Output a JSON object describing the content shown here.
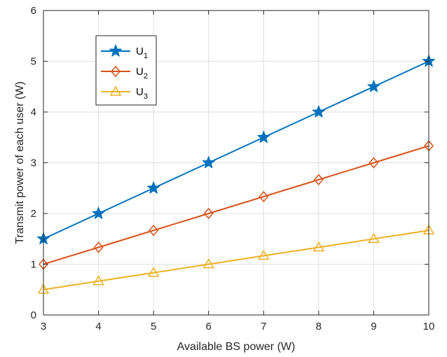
{
  "chart_data": {
    "type": "line",
    "xlabel": "Available BS power (W)",
    "ylabel": "Transmit power of each user (W)",
    "x": [
      3,
      4,
      5,
      6,
      7,
      8,
      9,
      10
    ],
    "xlim": [
      3,
      10
    ],
    "ylim": [
      0,
      6
    ],
    "xticks": [
      "3",
      "4",
      "5",
      "6",
      "7",
      "8",
      "9",
      "10"
    ],
    "yticks": [
      "0",
      "1",
      "2",
      "3",
      "4",
      "5",
      "6"
    ],
    "grid": true,
    "legend_position": "top-left",
    "series": [
      {
        "name": "U",
        "sub": "1",
        "marker": "star",
        "color": "#0072BD",
        "values": [
          1.5,
          2.0,
          2.5,
          3.0,
          3.5,
          4.0,
          4.5,
          5.0
        ]
      },
      {
        "name": "U",
        "sub": "2",
        "marker": "diamond",
        "color": "#D95319",
        "values": [
          1.0,
          1.333,
          1.667,
          2.0,
          2.333,
          2.667,
          3.0,
          3.333
        ]
      },
      {
        "name": "U",
        "sub": "3",
        "marker": "triangle",
        "color": "#EDB120",
        "values": [
          0.5,
          0.667,
          0.833,
          1.0,
          1.167,
          1.333,
          1.5,
          1.667
        ]
      }
    ]
  }
}
